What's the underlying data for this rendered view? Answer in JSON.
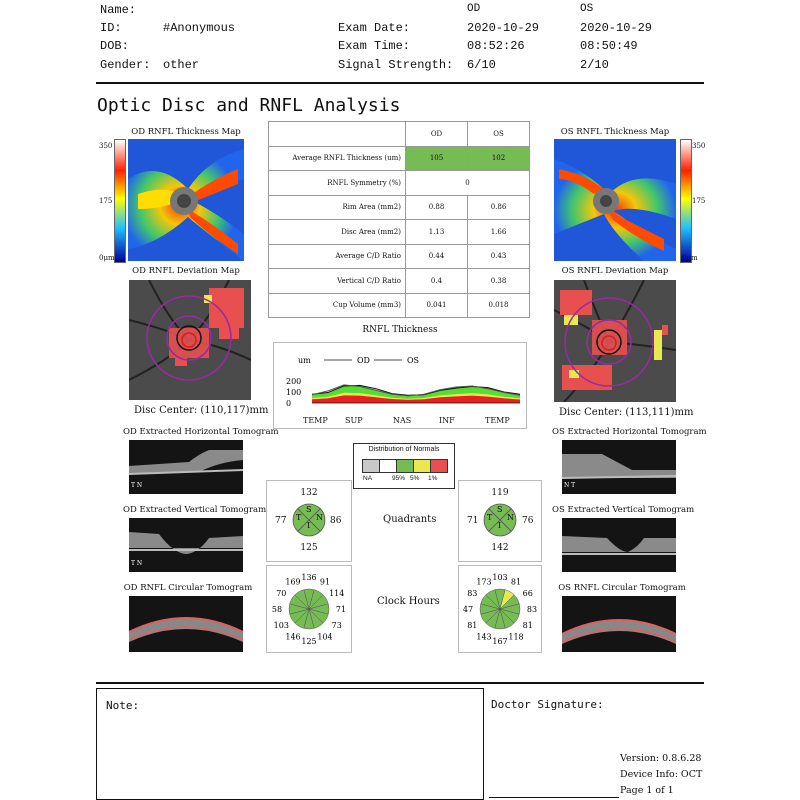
{
  "header": {
    "name_label": "Name:",
    "id_label": "ID:",
    "id_value": "#Anonymous",
    "dob_label": "DOB:",
    "gender_label": "Gender:",
    "gender_value": "other",
    "exam_date_label": "Exam Date:",
    "exam_time_label": "Exam Time:",
    "signal_label": "Signal Strength:",
    "od": {
      "eye": "OD",
      "date": "2020-10-29",
      "time": "08:52:26",
      "signal": "6/10"
    },
    "os": {
      "eye": "OS",
      "date": "2020-10-29",
      "time": "08:50:49",
      "signal": "2/10"
    }
  },
  "title": "Optic Disc and RNFL Analysis",
  "od_panel": {
    "thickness_map_title": "OD RNFL Thickness Map",
    "deviation_map_title": "OD RNFL Deviation Map",
    "disc_center": "Disc Center: (110,117)mm",
    "horizontal_title": "OD Extracted Horizontal Tomogram",
    "vertical_title": "OD Extracted Vertical Tomogram",
    "circular_title": "OD RNFL Circular Tomogram",
    "scale_top": "350",
    "scale_mid": "175",
    "scale_bottom": "0μm",
    "h_orient": "T N",
    "v_orient": "T N"
  },
  "os_panel": {
    "thickness_map_title": "OS RNFL Thickness Map",
    "deviation_map_title": "OS RNFL Deviation Map",
    "disc_center": "Disc Center: (113,111)mm",
    "horizontal_title": "OS Extracted Horizontal Tomogram",
    "vertical_title": "OS Extracted Vertical Tomogram",
    "circular_title": "OS RNFL Circular Tomogram",
    "scale_top": "350",
    "scale_mid": "175",
    "scale_bottom": "0μm",
    "h_orient": "N T"
  },
  "metrics": {
    "col_od": "OD",
    "col_os": "OS",
    "rows": [
      {
        "label": "Average RNFL Thickness (um)",
        "od": "105",
        "os": "102"
      },
      {
        "label": "RNFL Symmetry (%)",
        "merged": "0"
      },
      {
        "label": "Rim Area (mm2)",
        "od": "0.88",
        "os": "0.86"
      },
      {
        "label": "Disc Area (mm2)",
        "od": "1.13",
        "os": "1.66"
      },
      {
        "label": "Average C/D Ratio",
        "od": "0.44",
        "os": "0.43"
      },
      {
        "label": "Vertical C/D Ratio",
        "od": "0.4",
        "os": "0.38"
      },
      {
        "label": "Cup Volume (mm3)",
        "od": "0.041",
        "os": "0.018"
      }
    ]
  },
  "chart_data": {
    "type": "area",
    "title": "RNFL Thickness",
    "ylabel": "um",
    "ylim": [
      0,
      200
    ],
    "yticks": [
      "200",
      "100",
      "0"
    ],
    "xticks": [
      "TEMP",
      "SUP",
      "NAS",
      "INF",
      "TEMP"
    ],
    "series": [
      {
        "name": "OD",
        "values": [
          80,
          95,
          155,
          160,
          130,
          85,
          70,
          75,
          115,
          135,
          150,
          140,
          100,
          80
        ]
      },
      {
        "name": "OS",
        "values": [
          75,
          110,
          165,
          150,
          115,
          80,
          65,
          80,
          120,
          145,
          155,
          130,
          95,
          70
        ]
      }
    ],
    "normals_bands": [
      "red",
      "yellow",
      "green"
    ]
  },
  "legend": {
    "title": "Distribution of Normals",
    "items": [
      {
        "label": "NA",
        "color": "#c8c8c8"
      },
      {
        "label": "95%",
        "color": "#ffffff"
      },
      {
        "label": "5%",
        "color": "#77bb55"
      },
      {
        "label": "1%",
        "color": "#e8e850"
      },
      {
        "label": "",
        "color": "#e85050"
      }
    ]
  },
  "quadrants": {
    "label": "Quadrants",
    "od": {
      "top": "132",
      "bottom": "125",
      "left": "77",
      "right": "86"
    },
    "os": {
      "top": "119",
      "bottom": "142",
      "left": "71",
      "right": "76"
    },
    "letters": {
      "s": "S",
      "t": "T",
      "n": "N",
      "i": "I"
    }
  },
  "clock_hours": {
    "label": "Clock Hours",
    "od": [
      "136",
      "91",
      "114",
      "71",
      "73",
      "104",
      "125",
      "146",
      "103",
      "58",
      "70",
      "169"
    ],
    "os": [
      "103",
      "81",
      "66",
      "83",
      "81",
      "118",
      "167",
      "143",
      "81",
      "47",
      "83",
      "173"
    ]
  },
  "footer": {
    "note_label": "Note:",
    "signature_label": "Doctor Signature:",
    "version": "Version: 0.8.6.28",
    "device": "Device Info: OCT",
    "page": "Page 1 of 1"
  }
}
